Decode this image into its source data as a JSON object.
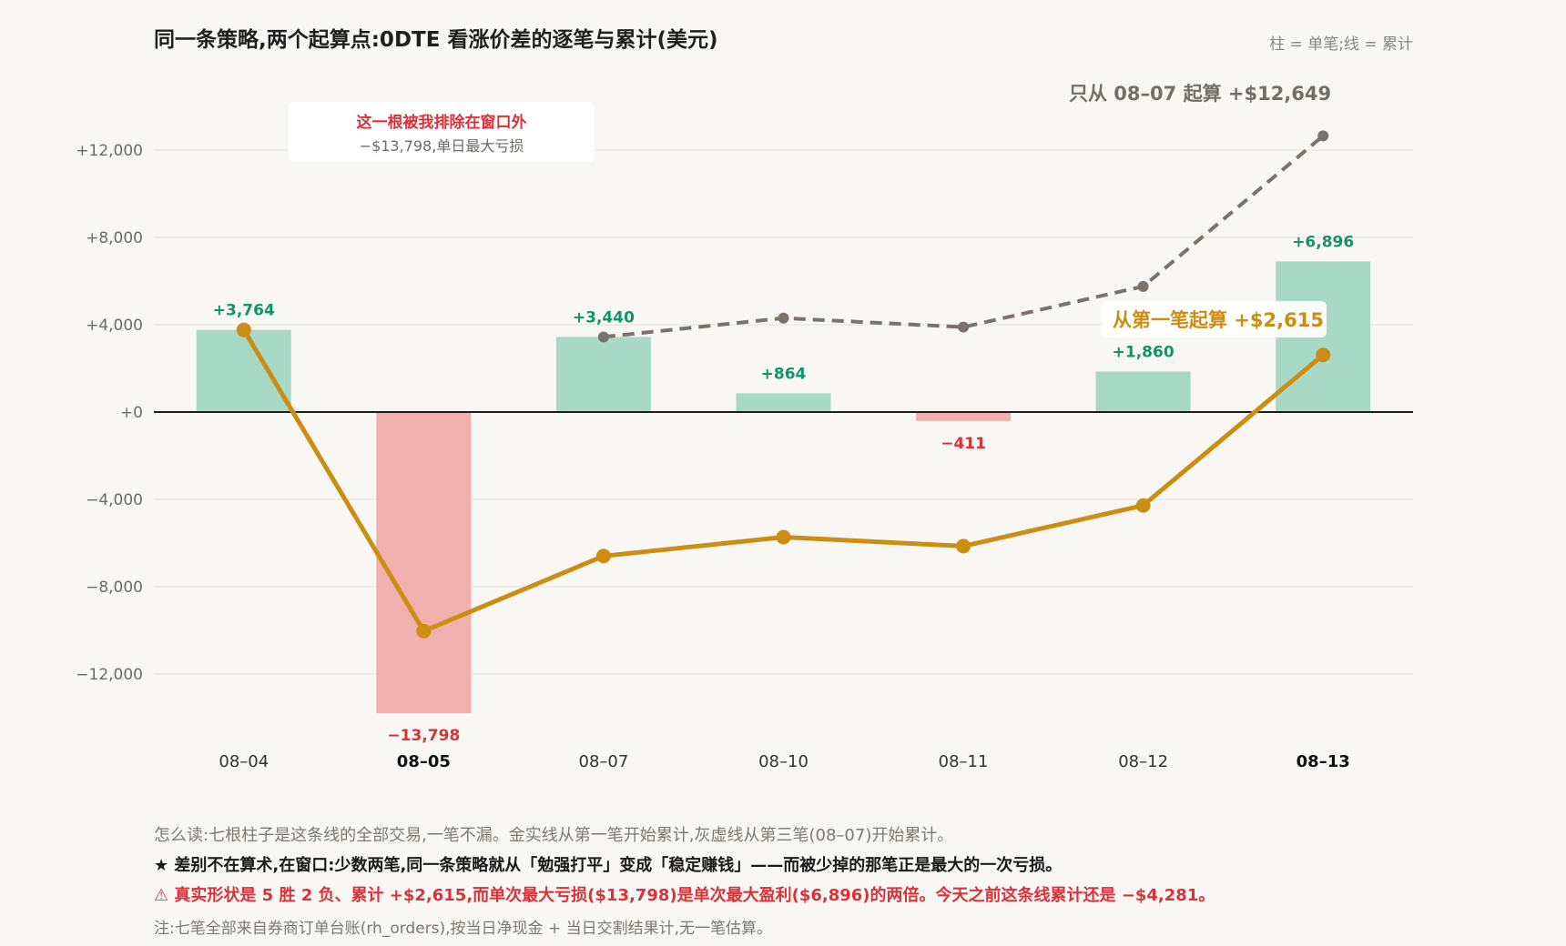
{
  "title": "同一条策略,两个起算点:0DTE 看涨价差的逐笔与累计(美元)",
  "legend_note": "柱 = 单笔;线 = 累计",
  "callouts": {
    "excluded_title": "这一根被我排除在窗口外",
    "excluded_sub": "−$13,798,单日最大亏损",
    "from_first": "从第一笔起算 +$2,615",
    "from_0807": "只从 08–07 起算 +$12,649"
  },
  "footer": {
    "howto": "怎么读:七根柱子是这条线的全部交易,一笔不漏。金实线从第一笔开始累计,灰虚线从第三笔(08–07)开始累计。",
    "key": "★ 差别不在算术,在窗口:少数两笔,同一条策略就从「勉强打平」变成「稳定赚钱」——而被少掉的那笔正是最大的一次亏损。",
    "warn": "⚠ 真实形状是 5 胜 2 负、累计 +$2,615,而单次最大亏损($13,798)是单次最大盈利($6,896)的两倍。今天之前这条线累计还是 −$4,281。",
    "note": "注:七笔全部来自券商订单台账(rh_orders),按当日净现金 + 当日交割结果计,无一笔估算。"
  },
  "chart_data": {
    "type": "bar",
    "categories": [
      "08–04",
      "08–05",
      "08–07",
      "08–10",
      "08–11",
      "08–12",
      "08–13"
    ],
    "bold_categories": [
      "08–05",
      "08–13"
    ],
    "series": [
      {
        "kind": "bar",
        "values": [
          3764,
          -13798,
          3440,
          864,
          -411,
          1860,
          6896
        ],
        "labels": [
          "+3,764",
          "−13,798",
          "+3,440",
          "+864",
          "−411",
          "+1,860",
          "+6,896"
        ]
      },
      {
        "kind": "line",
        "style": "solid",
        "color": "#cc8e12",
        "values": [
          3764,
          -10034,
          -6594,
          -5730,
          -6141,
          -4281,
          2615
        ]
      },
      {
        "kind": "line",
        "style": "dashed",
        "color": "#7a726d",
        "values": [
          null,
          null,
          3440,
          4304,
          3893,
          5753,
          12649
        ]
      }
    ],
    "yticks": [
      12000,
      8000,
      4000,
      0,
      -4000,
      -8000,
      -12000
    ],
    "ytick_labels": [
      "+12,000",
      "+8,000",
      "+4,000",
      "+0",
      "−4,000",
      "−8,000",
      "−12,000"
    ],
    "ylim": [
      -14500,
      14000
    ],
    "colors": {
      "positive": "#a8d8c6",
      "negative": "#f0b0ae",
      "pos_label": "#12946a",
      "neg_label": "#d8323a"
    },
    "grid": true
  }
}
